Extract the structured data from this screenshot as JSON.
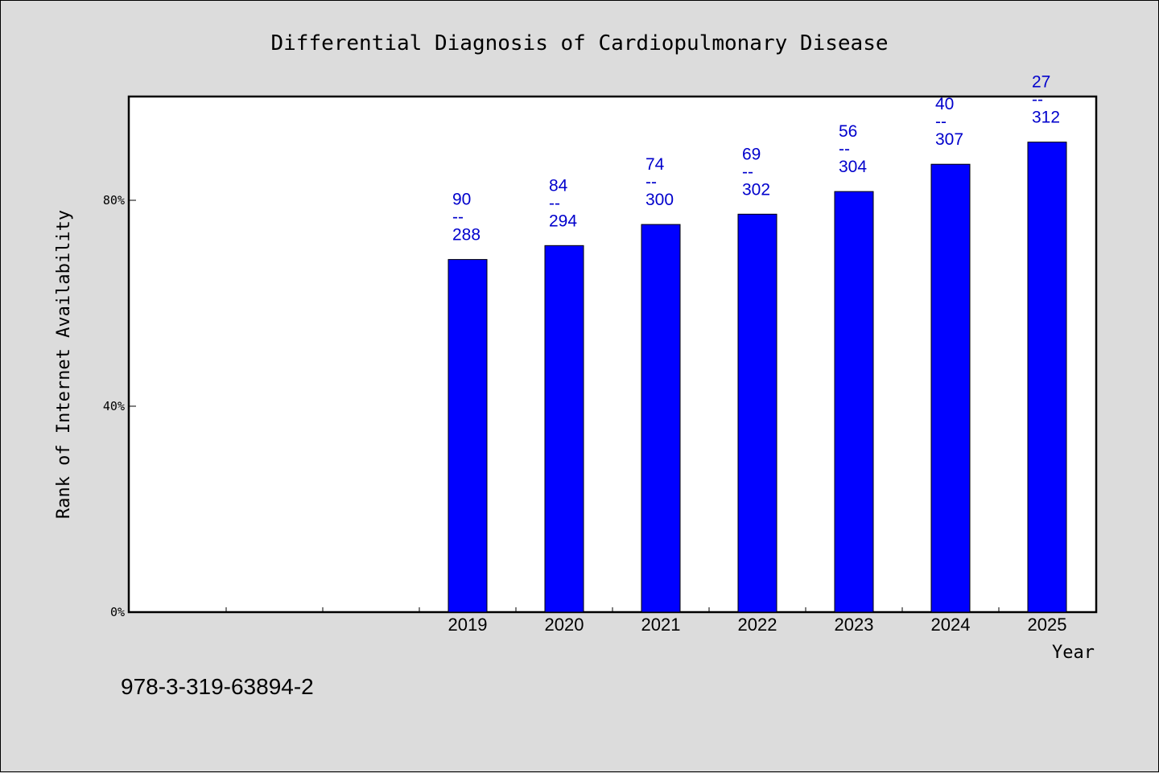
{
  "chart_data": {
    "type": "bar",
    "title": "Differential Diagnosis of Cardiopulmonary Disease",
    "xlabel": "Year",
    "ylabel": "Rank of Internet Availability",
    "ylim": [
      0,
      100
    ],
    "yticks": [
      {
        "value": 0,
        "label": "0%"
      },
      {
        "value": 40,
        "label": "40%"
      },
      {
        "value": 80,
        "label": "80%"
      }
    ],
    "slots": 10,
    "categories": [
      "2019",
      "2020",
      "2021",
      "2022",
      "2023",
      "2024",
      "2025"
    ],
    "first_category_slot": 3,
    "values": [
      68.5,
      71.2,
      75.3,
      77.3,
      81.7,
      87.0,
      91.3
    ],
    "labels": [
      {
        "top": "90",
        "sep": "--",
        "bottom": "288"
      },
      {
        "top": "84",
        "sep": "--",
        "bottom": "294"
      },
      {
        "top": "74",
        "sep": "--",
        "bottom": "300"
      },
      {
        "top": "69",
        "sep": "--",
        "bottom": "302"
      },
      {
        "top": "56",
        "sep": "--",
        "bottom": "304"
      },
      {
        "top": "40",
        "sep": "--",
        "bottom": "307"
      },
      {
        "top": "27",
        "sep": "--",
        "bottom": "312"
      }
    ],
    "bar_color": "#0000ff",
    "label_color": "#0000cc",
    "grid": false,
    "legend": "none"
  },
  "footnote": "978-3-319-63894-2"
}
